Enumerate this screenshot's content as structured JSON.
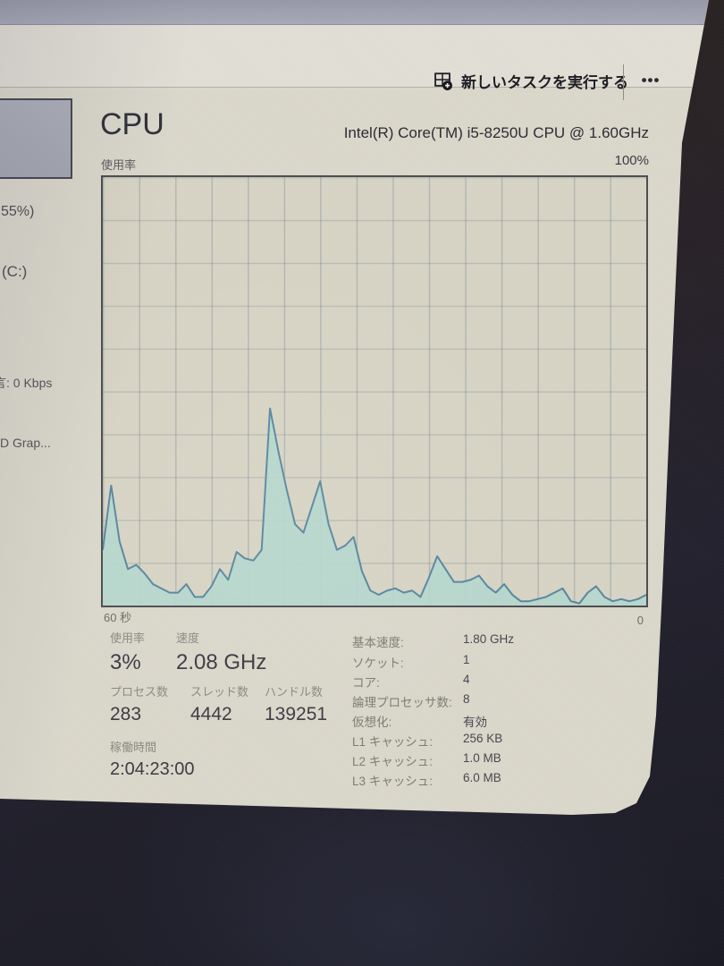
{
  "toolbar": {
    "run_new_task": "新しいタスクを実行する",
    "more": "•••"
  },
  "sidebar": {
    "items": [
      {
        "label": "55%)"
      },
      {
        "label": "(C:)"
      },
      {
        "label": "言: 0 Kbps"
      },
      {
        "label": "D Grap..."
      }
    ]
  },
  "cpu": {
    "title": "CPU",
    "subtitle": "Intel(R) Core(TM) i5-8250U CPU @ 1.60GHz",
    "usage_axis_label": "使用率",
    "max_axis_label": "100%",
    "time_axis_label": "60 秒",
    "zero_axis_label": "0",
    "stats": {
      "usage": {
        "label": "使用率",
        "value": "3%"
      },
      "speed": {
        "label": "速度",
        "value": "2.08 GHz"
      },
      "processes": {
        "label": "プロセス数",
        "value": "283"
      },
      "threads": {
        "label": "スレッド数",
        "value": "4442"
      },
      "handles": {
        "label": "ハンドル数",
        "value": "139251"
      },
      "uptime": {
        "label": "稼働時間",
        "value": "2:04:23:00"
      }
    },
    "details": [
      {
        "label": "基本速度:",
        "value": "1.80 GHz"
      },
      {
        "label": "ソケット:",
        "value": "1"
      },
      {
        "label": "コア:",
        "value": "4"
      },
      {
        "label": "論理プロセッサ数:",
        "value": "8"
      },
      {
        "label": "仮想化:",
        "value": "有効"
      },
      {
        "label": "L1 キャッシュ:",
        "value": "256 KB"
      },
      {
        "label": "L2 キャッシュ:",
        "value": "1.0 MB"
      },
      {
        "label": "L3 キャッシュ:",
        "value": "6.0 MB"
      }
    ]
  },
  "chart_data": {
    "type": "area",
    "title": "CPU 使用率 (% over last 60 seconds)",
    "series_name": "CPU 使用率",
    "xlabel": "60 秒 → 0",
    "ylabel": "使用率 (%)",
    "ylim": [
      0,
      100
    ],
    "x_range_seconds": 60,
    "grid": true,
    "legend_position": "none",
    "values": [
      13,
      28,
      15,
      8.5,
      9.5,
      7.5,
      5,
      4,
      3,
      3,
      5,
      2,
      2,
      4.5,
      8.5,
      6,
      12.5,
      11,
      10.5,
      13,
      46,
      36,
      27,
      19,
      17,
      23,
      29,
      19,
      13,
      14,
      16,
      8,
      3.5,
      2.5,
      3.5,
      4,
      3,
      3.5,
      2,
      6.5,
      11.5,
      8.5,
      5.5,
      5.5,
      6,
      7,
      4.5,
      3,
      5,
      2.5,
      1,
      1,
      1.5,
      2,
      3,
      4,
      1,
      0.5,
      3,
      4.5,
      2,
      1,
      1.5,
      1,
      1.5,
      2.5
    ]
  },
  "colors": {
    "accent_fill": "#b4d6cd",
    "accent_line": "#58869f",
    "screen_bg": "#d9d6ca",
    "toolbar_bg": "#e0ddd4",
    "top_strip": "#a0a2b1",
    "grid_line": "#6e7e8a",
    "selected_preview_bg": "#a8aab5"
  }
}
